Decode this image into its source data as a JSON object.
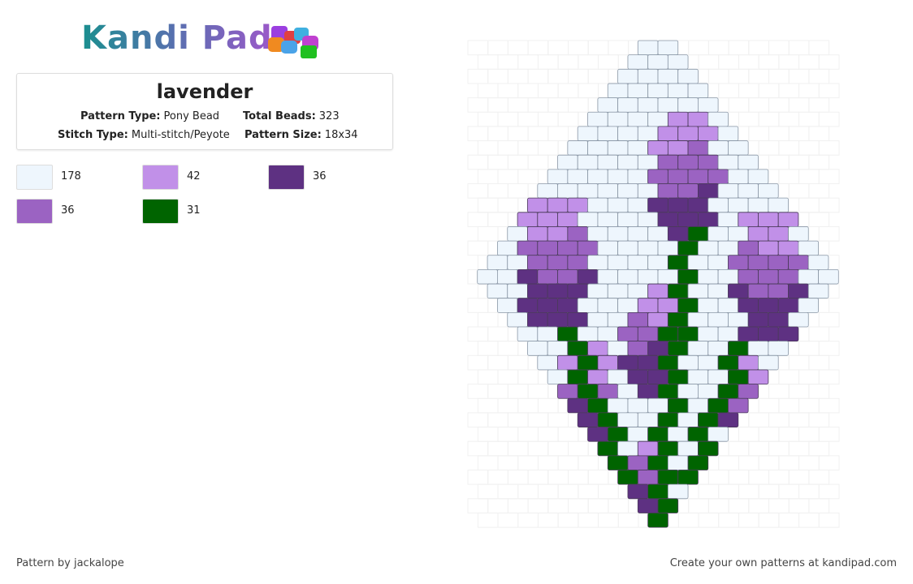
{
  "logo": {
    "text": "Kandi Pad"
  },
  "pattern": {
    "title": "lavender",
    "fields": [
      {
        "label": "Pattern Type:",
        "value": "Pony Bead"
      },
      {
        "label": "Total Beads:",
        "value": "323"
      },
      {
        "label": "Stitch Type:",
        "value": "Multi-stitch/Peyote"
      },
      {
        "label": "Pattern Size:",
        "value": "18x34"
      }
    ]
  },
  "colors": [
    {
      "color": "#eef6fd",
      "count": 178
    },
    {
      "color": "#c190e8",
      "count": 42
    },
    {
      "color": "#5e3182",
      "count": 36
    },
    {
      "color": "#9b63c2",
      "count": 36
    },
    {
      "color": "#006400",
      "count": 31
    }
  ],
  "footer": {
    "credit": "Pattern by jackalope",
    "promo": "Create your own patterns at kandipad.com"
  }
}
